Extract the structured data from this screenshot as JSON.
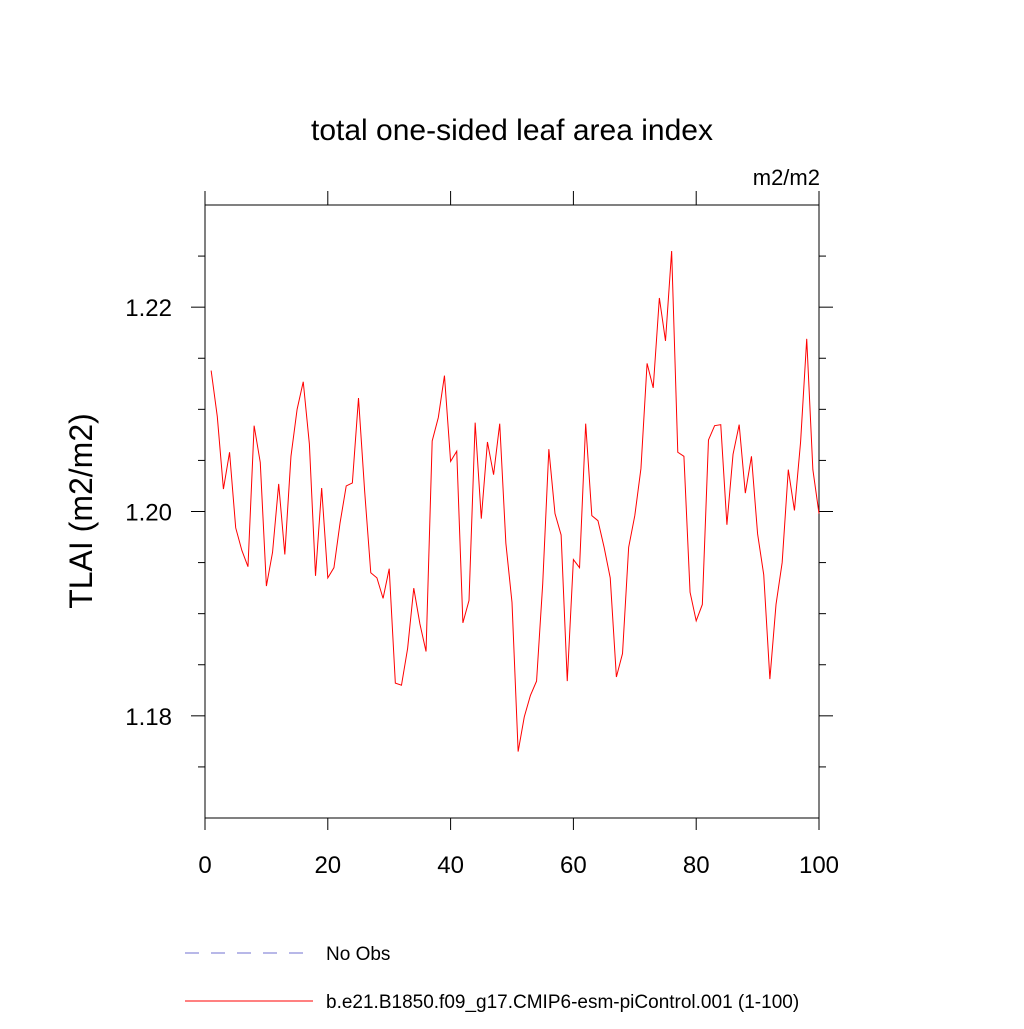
{
  "chart_data": {
    "type": "line",
    "title": "total one-sided leaf area index",
    "units": "m2/m2",
    "y_label": "TLAI  (m2/m2)",
    "x": [
      1,
      2,
      3,
      4,
      5,
      6,
      7,
      8,
      9,
      10,
      11,
      12,
      13,
      14,
      15,
      16,
      17,
      18,
      19,
      20,
      21,
      22,
      23,
      24,
      25,
      26,
      27,
      28,
      29,
      30,
      31,
      32,
      33,
      34,
      35,
      36,
      37,
      38,
      39,
      40,
      41,
      42,
      43,
      44,
      45,
      46,
      47,
      48,
      49,
      50,
      51,
      52,
      53,
      54,
      55,
      56,
      57,
      58,
      59,
      60,
      61,
      62,
      63,
      64,
      65,
      66,
      67,
      68,
      69,
      70,
      71,
      72,
      73,
      74,
      75,
      76,
      77,
      78,
      79,
      80,
      81,
      82,
      83,
      84,
      85,
      86,
      87,
      88,
      89,
      90,
      91,
      92,
      93,
      94,
      95,
      96,
      97,
      98,
      99,
      100
    ],
    "series": [
      {
        "name": "b.e21.B1850.f09_g17.CMIP6-esm-piControl.001 (1-100)",
        "color": "#ff0000",
        "values": [
          1.2138,
          1.2093,
          1.2022,
          1.2058,
          1.1984,
          1.1962,
          1.1946,
          1.2084,
          1.2048,
          1.1927,
          1.196,
          1.2027,
          1.1958,
          1.2054,
          1.21,
          1.2127,
          1.2066,
          1.1937,
          1.2023,
          1.1935,
          1.1945,
          1.1989,
          1.2025,
          1.2028,
          1.2111,
          1.202,
          1.194,
          1.1935,
          1.1915,
          1.1944,
          1.1832,
          1.183,
          1.1866,
          1.1925,
          1.189,
          1.1863,
          1.2069,
          1.2092,
          1.2133,
          1.2049,
          1.2059,
          1.1891,
          1.1913,
          1.2087,
          1.1993,
          1.2068,
          1.2036,
          1.2086,
          1.1969,
          1.1911,
          1.1765,
          1.1799,
          1.182,
          1.1834,
          1.1929,
          1.2061,
          1.1998,
          1.1977,
          1.1834,
          1.1953,
          1.1945,
          1.2086,
          1.1996,
          1.1991,
          1.1965,
          1.1935,
          1.1838,
          1.1861,
          1.1965,
          1.1996,
          1.2042,
          1.2145,
          1.2121,
          1.2209,
          1.2167,
          1.2255,
          1.2058,
          1.2054,
          1.1921,
          1.1893,
          1.1909,
          1.207,
          1.2084,
          1.2085,
          1.1987,
          1.2056,
          1.2085,
          1.2018,
          1.2054,
          1.1978,
          1.1938,
          1.1836,
          1.1909,
          1.195,
          1.2041,
          1.2001,
          1.2068,
          1.2169,
          1.2041,
          1.1998
        ]
      }
    ],
    "reference_line": {
      "name": "No Obs",
      "color": "#7070d0",
      "style": "dashed"
    },
    "xlim": [
      0,
      100
    ],
    "xticks": [
      0,
      20,
      40,
      60,
      80,
      100
    ],
    "ylim": [
      1.17,
      1.23
    ],
    "yticks": [
      1.18,
      {
        "value": 1.2,
        "label": "1.20"
      },
      1.22
    ],
    "yminorticks": [
      1.175,
      1.185,
      1.19,
      1.195,
      1.205,
      1.21,
      1.215,
      1.225
    ]
  }
}
